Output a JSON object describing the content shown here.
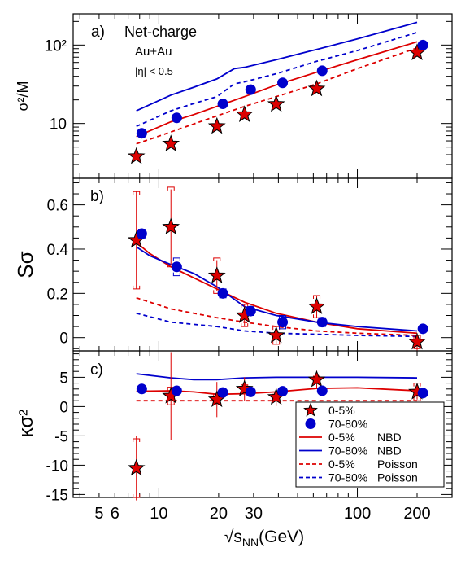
{
  "chart_data": [
    {
      "type": "line",
      "panel_label": "a)",
      "ylabel": "σ²/M",
      "yscale": "log",
      "ylim": [
        2,
        250
      ],
      "xscale": "log",
      "xlim": [
        3.7,
        300
      ],
      "annotations": [
        "Net-charge",
        "Au+Au",
        "|η| < 0.5"
      ],
      "yticks": [
        "10",
        "10²"
      ],
      "series": [
        {
          "name": "0-5%",
          "kind": "markers",
          "marker": "star",
          "color": "#dd0000",
          "x": [
            7.7,
            11.5,
            19.6,
            27,
            39,
            62.4,
            200
          ],
          "y": [
            3.8,
            5.5,
            9.2,
            13,
            17.6,
            27.7,
            80
          ]
        },
        {
          "name": "70-80%",
          "kind": "markers",
          "marker": "circle",
          "color": "#0000cc",
          "x": [
            8.2,
            12.3,
            21,
            29,
            42,
            66.5,
            214
          ],
          "y": [
            7.5,
            11.8,
            17.8,
            27,
            33,
            47,
            100
          ]
        },
        {
          "name": "0-5% NBD",
          "kind": "line",
          "dash": "solid",
          "color": "#dd0000",
          "x": [
            7.7,
            11.5,
            15,
            19.6,
            27,
            39,
            62.4,
            100,
            200
          ],
          "y": [
            6.8,
            10.5,
            13,
            16.5,
            22,
            31,
            45,
            65,
            110
          ]
        },
        {
          "name": "70-80% NBD",
          "kind": "line",
          "dash": "solid",
          "color": "#0000cc",
          "x": [
            7.7,
            11.5,
            15,
            19.6,
            24,
            27,
            39,
            62.4,
            100,
            200
          ],
          "y": [
            14.5,
            23,
            29,
            37,
            50,
            52,
            65,
            88,
            120,
            195
          ]
        },
        {
          "name": "0-5% Poisson",
          "kind": "line",
          "dash": "dashed",
          "color": "#dd0000",
          "x": [
            7.7,
            11.5,
            19.6,
            27,
            39,
            62.4,
            100,
            200
          ],
          "y": [
            5.5,
            7.8,
            12.5,
            16.5,
            22,
            32,
            50,
            92
          ]
        },
        {
          "name": "70-80% Poisson",
          "kind": "line",
          "dash": "dashed",
          "color": "#0000cc",
          "x": [
            7.7,
            11.5,
            15,
            19.6,
            24,
            27,
            39,
            62.4,
            100,
            200
          ],
          "y": [
            9.2,
            14.5,
            18,
            22,
            32,
            34,
            43,
            62,
            85,
            145
          ]
        }
      ]
    },
    {
      "type": "line",
      "panel_label": "b)",
      "ylabel": "Sσ",
      "ylim": [
        -0.06,
        0.72
      ],
      "xscale": "log",
      "xlim": [
        3.7,
        300
      ],
      "yticks": [
        "0",
        "0.2",
        "0.4",
        "0.6"
      ],
      "series": [
        {
          "name": "0-5%",
          "kind": "markers",
          "marker": "star",
          "color": "#dd0000",
          "x": [
            7.7,
            11.5,
            19.6,
            27,
            39,
            62.4,
            200
          ],
          "y": [
            0.44,
            0.5,
            0.28,
            0.1,
            0.01,
            0.14,
            -0.02
          ],
          "stat_err": [
            0.22,
            0.17,
            0.07,
            0.05,
            0.04,
            0.05,
            0.04
          ],
          "sys_err": [
            0.22,
            0.18,
            0.08,
            0.05,
            0.04,
            0.05,
            0.03
          ]
        },
        {
          "name": "70-80%",
          "kind": "markers",
          "marker": "circle",
          "color": "#0000cc",
          "x": [
            8.2,
            12.3,
            21,
            29,
            42,
            66.5,
            214
          ],
          "y": [
            0.47,
            0.32,
            0.2,
            0.12,
            0.07,
            0.07,
            0.04
          ],
          "stat_err": [
            0.01,
            0.01,
            0.01,
            0.01,
            0.01,
            0.01,
            0.01
          ],
          "sys_err": [
            0.02,
            0.04,
            0.02,
            0.02,
            0.03,
            0.02,
            0.01
          ]
        },
        {
          "name": "0-5% NBD",
          "kind": "line",
          "dash": "solid",
          "color": "#dd0000",
          "x": [
            7.7,
            9,
            11.5,
            15,
            19.6,
            27,
            39,
            62.4,
            100,
            200
          ],
          "y": [
            0.43,
            0.38,
            0.32,
            0.27,
            0.22,
            0.16,
            0.11,
            0.07,
            0.04,
            0.02
          ]
        },
        {
          "name": "70-80% NBD",
          "kind": "line",
          "dash": "solid",
          "color": "#0000cc",
          "x": [
            7.7,
            9,
            11.5,
            15,
            19.6,
            27,
            39,
            62.4,
            100,
            200
          ],
          "y": [
            0.41,
            0.37,
            0.33,
            0.29,
            0.23,
            0.14,
            0.1,
            0.07,
            0.05,
            0.03
          ]
        },
        {
          "name": "0-5% Poisson",
          "kind": "line",
          "dash": "dashed",
          "color": "#dd0000",
          "x": [
            7.7,
            11.5,
            19.6,
            27,
            39,
            62.4,
            100,
            200
          ],
          "y": [
            0.18,
            0.13,
            0.09,
            0.07,
            0.05,
            0.03,
            0.02,
            0.01
          ]
        },
        {
          "name": "70-80% Poisson",
          "kind": "line",
          "dash": "dashed",
          "color": "#0000cc",
          "x": [
            7.7,
            11.5,
            19.6,
            27,
            39,
            62.4,
            100,
            200
          ],
          "y": [
            0.11,
            0.07,
            0.05,
            0.03,
            0.02,
            0.015,
            0.01,
            0.005
          ]
        }
      ]
    },
    {
      "type": "line",
      "panel_label": "c)",
      "ylabel": "κσ²",
      "ylim": [
        -15.5,
        9.5
      ],
      "xscale": "log",
      "xlim": [
        3.7,
        300
      ],
      "xlabel": "√sNN(GeV)",
      "xlabel_main": "√s",
      "xlabel_sub": "NN",
      "xlabel_unit": "(GeV)",
      "yticks": [
        "-15",
        "-10",
        "-5",
        "0",
        "5"
      ],
      "xticks": [
        {
          "value": 5,
          "label": "5"
        },
        {
          "value": 6,
          "label": "6"
        },
        {
          "value": 10,
          "label": "10"
        },
        {
          "value": 20,
          "label": "20"
        },
        {
          "value": 30,
          "label": "30"
        },
        {
          "value": 100,
          "label": "100"
        },
        {
          "value": 200,
          "label": "200"
        }
      ],
      "series": [
        {
          "name": "0-5%",
          "kind": "markers",
          "marker": "star",
          "color": "#dd0000",
          "x": [
            7.7,
            11.5,
            19.6,
            27,
            39,
            62.4,
            200
          ],
          "y": [
            -10.5,
            1.8,
            1.2,
            3.0,
            1.6,
            4.6,
            2.5
          ],
          "stat_err": [
            5.5,
            7.5,
            3.0,
            2.0,
            1.5,
            1.5,
            1.3
          ],
          "sys_err": [
            5.0,
            1.5,
            0.9,
            0.7,
            0.5,
            0.6,
            1.5
          ]
        },
        {
          "name": "70-80%",
          "kind": "markers",
          "marker": "circle",
          "color": "#0000cc",
          "x": [
            8.2,
            12.3,
            21,
            29,
            42,
            66.5,
            214
          ],
          "y": [
            3.0,
            2.7,
            2.4,
            2.5,
            2.6,
            2.7,
            2.3
          ],
          "stat_err": [
            0.2,
            0.2,
            0.2,
            0.2,
            0.2,
            0.2,
            0.2
          ],
          "sys_err": [
            0.3,
            0.3,
            0.3,
            0.3,
            0.3,
            0.3,
            0.3
          ]
        },
        {
          "name": "0-5% NBD",
          "kind": "line",
          "dash": "solid",
          "color": "#dd0000",
          "x": [
            7.7,
            11.5,
            15,
            19.6,
            27,
            39,
            62.4,
            100,
            200
          ],
          "y": [
            2.6,
            2.7,
            2.5,
            2.1,
            2.2,
            2.5,
            3.1,
            3.2,
            2.7
          ]
        },
        {
          "name": "70-80% NBD",
          "kind": "line",
          "dash": "solid",
          "color": "#0000cc",
          "x": [
            7.7,
            11.5,
            15,
            19.6,
            27,
            39,
            62.4,
            100,
            200
          ],
          "y": [
            5.6,
            4.9,
            4.6,
            4.6,
            4.9,
            5.0,
            5.0,
            5.0,
            4.9
          ]
        },
        {
          "name": "0-5% Poisson",
          "kind": "line",
          "dash": "dashed",
          "color": "#dd0000",
          "x": [
            7.7,
            200
          ],
          "y": [
            1.0,
            1.0
          ]
        }
      ],
      "legend": {
        "placement": "bottom-right",
        "entries": [
          {
            "marker": "star",
            "color": "#dd0000",
            "label": "0-5%",
            "model": ""
          },
          {
            "marker": "circle",
            "color": "#0000cc",
            "label": "70-80%",
            "model": ""
          },
          {
            "marker": "line-solid",
            "color": "#dd0000",
            "label": "0-5%",
            "model": "NBD"
          },
          {
            "marker": "line-solid",
            "color": "#0000cc",
            "label": "70-80%",
            "model": "NBD"
          },
          {
            "marker": "line-dashed",
            "color": "#dd0000",
            "label": "0-5%",
            "model": "Poisson"
          },
          {
            "marker": "line-dashed",
            "color": "#0000cc",
            "label": "70-80%",
            "model": "Poisson"
          }
        ]
      }
    }
  ]
}
